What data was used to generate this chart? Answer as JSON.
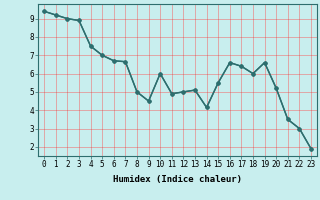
{
  "x": [
    0,
    1,
    2,
    3,
    4,
    5,
    6,
    7,
    8,
    9,
    10,
    11,
    12,
    13,
    14,
    15,
    16,
    17,
    18,
    19,
    20,
    21,
    22,
    23
  ],
  "y": [
    9.4,
    9.2,
    9.0,
    8.9,
    7.5,
    7.0,
    6.7,
    6.65,
    5.0,
    4.5,
    6.0,
    4.9,
    5.0,
    5.1,
    4.15,
    5.5,
    6.6,
    6.4,
    6.0,
    6.6,
    5.2,
    3.5,
    3.0,
    1.9
  ],
  "xlabel": "Humidex (Indice chaleur)",
  "yticks": [
    2,
    3,
    4,
    5,
    6,
    7,
    8,
    9
  ],
  "xticks": [
    0,
    1,
    2,
    3,
    4,
    5,
    6,
    7,
    8,
    9,
    10,
    11,
    12,
    13,
    14,
    15,
    16,
    17,
    18,
    19,
    20,
    21,
    22,
    23
  ],
  "line_color": "#2d6e6e",
  "marker_size": 2.5,
  "bg_color": "#c8eeee",
  "line_width": 1.0,
  "tick_label_fontsize": 5.5,
  "xlabel_fontsize": 6.5
}
